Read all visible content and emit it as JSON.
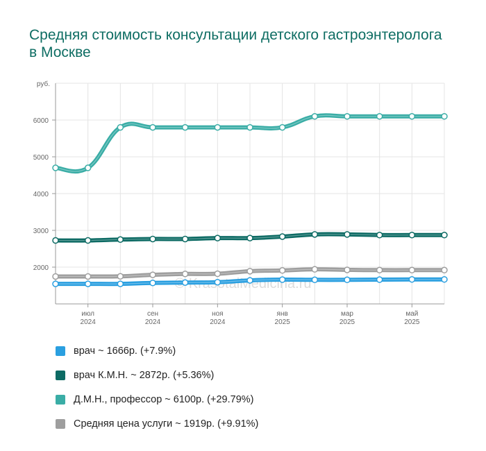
{
  "chart_data": {
    "type": "line",
    "title": "Средняя стоимость консультации детского гастроэнтеролога в Москве",
    "ylabel": "руб.",
    "ylim": [
      1000,
      7000
    ],
    "yticks": [
      2000,
      3000,
      4000,
      5000,
      6000
    ],
    "grid": true,
    "legend_position": "bottom",
    "watermark": "© KrasotaiMedicina.ru",
    "x": [
      "2024-05",
      "2024-06",
      "2024-07",
      "2024-08",
      "2024-09",
      "2024-10",
      "2024-11",
      "2024-12",
      "2025-01",
      "2025-02",
      "2025-03",
      "2025-04",
      "2025-05"
    ],
    "xticks": [
      {
        "x": "2024-06",
        "month": "июл",
        "year": "2024"
      },
      {
        "x": "2024-08",
        "month": "сен",
        "year": "2024"
      },
      {
        "x": "2024-10",
        "month": "ноя",
        "year": "2024"
      },
      {
        "x": "2024-12",
        "month": "янв",
        "year": "2025"
      },
      {
        "x": "2025-02",
        "month": "мар",
        "year": "2025"
      },
      {
        "x": "2025-04",
        "month": "май",
        "year": "2025"
      }
    ],
    "series": [
      {
        "name": "врач",
        "legend": "врач ~ 1666р. (+7.9%)",
        "color": "#2a9fe0",
        "values": [
          1545,
          1545,
          1545,
          1570,
          1580,
          1590,
          1640,
          1660,
          1655,
          1655,
          1660,
          1666,
          1666
        ]
      },
      {
        "name": "врач К.М.Н.",
        "legend": "врач К.М.Н. ~ 2872р. (+5.36%)",
        "color": "#0d6b64",
        "values": [
          2726,
          2726,
          2750,
          2765,
          2765,
          2790,
          2790,
          2830,
          2890,
          2890,
          2872,
          2872,
          2872
        ]
      },
      {
        "name": "Д.М.Н., профессор",
        "legend": "Д.М.Н., профессор ~ 6100р. (+29.79%)",
        "color": "#3aada6",
        "values": [
          4700,
          4700,
          5800,
          5800,
          5800,
          5800,
          5800,
          5800,
          6100,
          6100,
          6100,
          6100,
          6100
        ]
      },
      {
        "name": "Средняя цена услуги",
        "legend": "Средняя цена услуги ~ 1919р. (+9.91%)",
        "color": "#9e9e9e",
        "values": [
          1746,
          1746,
          1750,
          1790,
          1815,
          1820,
          1890,
          1910,
          1940,
          1925,
          1919,
          1919,
          1919
        ]
      }
    ]
  }
}
